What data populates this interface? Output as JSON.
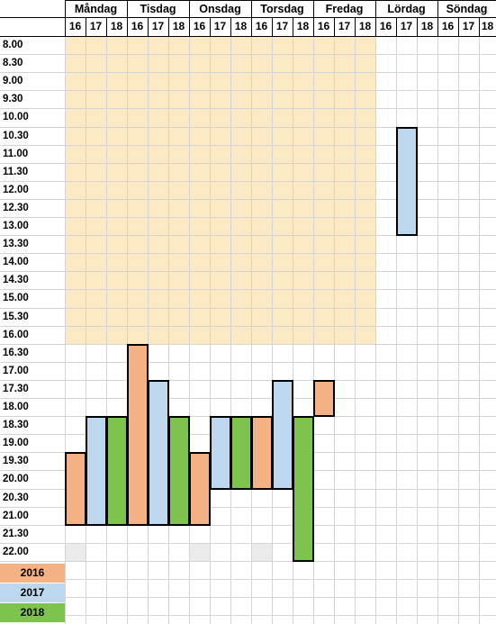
{
  "days": [
    "Måndag",
    "Tisdag",
    "Onsdag",
    "Torsdag",
    "Fredag",
    "Lördag",
    "Söndag"
  ],
  "years": [
    "16",
    "17",
    "18"
  ],
  "times": [
    "8.00",
    "8.30",
    "9.00",
    "9.30",
    "10.00",
    "10.30",
    "11.00",
    "11.30",
    "12.00",
    "12.30",
    "13.00",
    "13.30",
    "14.00",
    "14.30",
    "15.00",
    "15.30",
    "16.00",
    "16.30",
    "17.00",
    "17.30",
    "18.00",
    "18.30",
    "19.00",
    "19.30",
    "20.00",
    "20.30",
    "21.00",
    "21.30",
    "22.00"
  ],
  "colors": {
    "y2016": "#f4b183",
    "y2017": "#bdd7ee",
    "y2018": "#7fc34f",
    "office": "#fde9c3",
    "lightgray": "#ebebeb"
  },
  "office_hours": {
    "from_slot": 0,
    "to_slot": 16,
    "days": 5
  },
  "bars": [
    {
      "day": 0,
      "year": 0,
      "from": 23,
      "to": 26
    },
    {
      "day": 0,
      "year": 1,
      "from": 21,
      "to": 26
    },
    {
      "day": 0,
      "year": 2,
      "from": 21,
      "to": 26
    },
    {
      "day": 1,
      "year": 0,
      "from": 17,
      "to": 26
    },
    {
      "day": 1,
      "year": 1,
      "from": 19,
      "to": 26
    },
    {
      "day": 1,
      "year": 2,
      "from": 21,
      "to": 26
    },
    {
      "day": 2,
      "year": 0,
      "from": 23,
      "to": 26
    },
    {
      "day": 2,
      "year": 1,
      "from": 21,
      "to": 24
    },
    {
      "day": 2,
      "year": 2,
      "from": 21,
      "to": 24
    },
    {
      "day": 3,
      "year": 0,
      "from": 21,
      "to": 24
    },
    {
      "day": 3,
      "year": 1,
      "from": 19,
      "to": 24
    },
    {
      "day": 3,
      "year": 2,
      "from": 21,
      "to": 28
    },
    {
      "day": 4,
      "year": 0,
      "from": 19,
      "to": 20
    },
    {
      "day": 5,
      "year": 1,
      "from": 5,
      "to": 10
    }
  ],
  "gray_cells": [
    {
      "day": 0,
      "year": 0,
      "slot": 28
    },
    {
      "day": 2,
      "year": 0,
      "slot": 28
    },
    {
      "day": 3,
      "year": 0,
      "slot": 28
    }
  ],
  "legend": [
    {
      "label": "2016",
      "key": "y2016"
    },
    {
      "label": "2017",
      "key": "y2017"
    },
    {
      "label": "2018",
      "key": "y2018"
    }
  ]
}
